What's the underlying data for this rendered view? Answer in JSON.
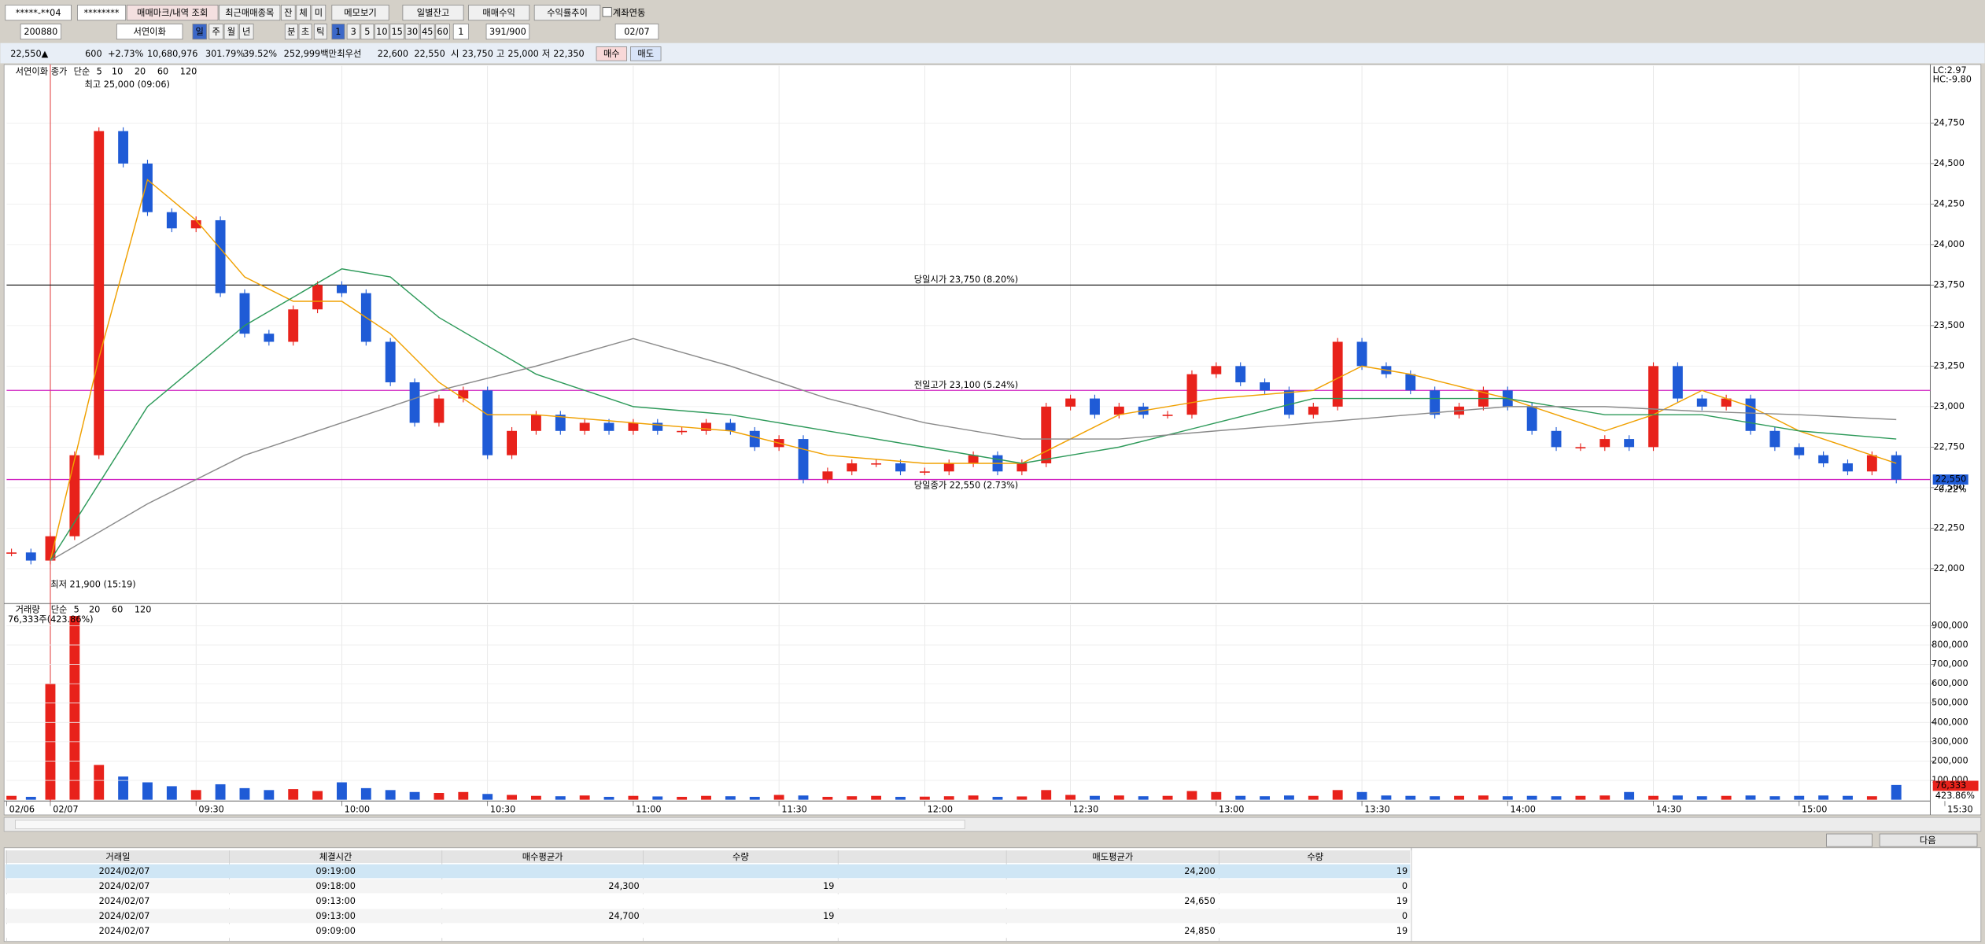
{
  "toolbar": {
    "row1": [
      "*****-**04",
      "********",
      "매매마크/내역 조회",
      "최근매매종목",
      "잔",
      "체",
      "미",
      "메모보기",
      "일별잔고",
      "매매수익",
      "수익률추이",
      "계좌연동"
    ],
    "row2": [
      "200880",
      "서연이화",
      "일",
      "주",
      "월",
      "년",
      "분",
      "초",
      "틱",
      "1",
      "3",
      "5",
      "10",
      "15",
      "30",
      "45",
      "60",
      "1",
      "391/900",
      "02/07"
    ],
    "row3": [
      "22,550▲",
      "600",
      "+2.73%",
      "10,680,976",
      "301.79%",
      "39.52%",
      "252,999백만",
      "최우선",
      "22,600",
      "22,550",
      "시",
      "23,750",
      "고",
      "25,000",
      "저",
      "22,350",
      "매수",
      "매도"
    ]
  },
  "chart_data": [
    {
      "type": "candlestick",
      "name": "서연이화",
      "legend": [
        "종가",
        "단순"
      ],
      "legend_only": [
        {
          "name": "5",
          "color": "#1a2f9c"
        },
        {
          "name": "10",
          "color": "#9a3bb0"
        }
      ],
      "up_color": "#e8221b",
      "down_color": "#1f5bd6",
      "x": [
        -8,
        -4,
        0,
        5,
        10,
        15,
        20,
        25,
        30,
        35,
        40,
        45,
        50,
        55,
        60,
        65,
        70,
        75,
        80,
        85,
        90,
        95,
        100,
        105,
        110,
        115,
        120,
        125,
        130,
        135,
        140,
        145,
        150,
        155,
        160,
        165,
        170,
        175,
        180,
        185,
        190,
        195,
        200,
        205,
        210,
        215,
        220,
        225,
        230,
        235,
        240,
        245,
        250,
        255,
        260,
        265,
        270,
        275,
        280,
        285,
        290,
        295,
        300,
        305,
        310,
        315,
        320,
        325,
        330,
        335,
        340,
        345,
        350,
        355,
        360,
        365,
        370,
        375,
        380
      ],
      "values": [
        22100,
        22050,
        22200,
        22700,
        24700,
        24500,
        24200,
        24100,
        24150,
        23700,
        23450,
        23400,
        23600,
        23750,
        23700,
        23400,
        23150,
        22900,
        23050,
        23100,
        22700,
        22850,
        22950,
        22850,
        22900,
        22850,
        22900,
        22850,
        22850,
        22900,
        22850,
        22750,
        22800,
        22550,
        22600,
        22650,
        22650,
        22600,
        22600,
        22650,
        22700,
        22600,
        22650,
        23000,
        23050,
        22950,
        23000,
        22950,
        22950,
        23200,
        23250,
        23150,
        23100,
        22950,
        23000,
        23400,
        23250,
        23200,
        23100,
        22950,
        23000,
        23100,
        23000,
        22850,
        22750,
        22750,
        22800,
        22750,
        23250,
        23050,
        23000,
        23050,
        22850,
        22750,
        22700,
        22650,
        22600,
        22700,
        22550
      ],
      "series": [
        {
          "name": "20",
          "color": "#f0a000",
          "x": [
            0,
            10,
            20,
            30,
            40,
            50,
            60,
            70,
            80,
            90,
            100,
            120,
            140,
            160,
            180,
            200,
            210,
            220,
            240,
            260,
            270,
            280,
            300,
            320,
            330,
            340,
            350,
            360,
            380
          ],
          "values": [
            22050,
            23300,
            24400,
            24150,
            23800,
            23650,
            23650,
            23450,
            23150,
            22950,
            22950,
            22900,
            22850,
            22700,
            22650,
            22650,
            22800,
            22950,
            23050,
            23100,
            23250,
            23200,
            23050,
            22850,
            22950,
            23100,
            23000,
            22850,
            22650
          ]
        },
        {
          "name": "60",
          "color": "#2e9a5a",
          "x": [
            0,
            20,
            40,
            60,
            70,
            80,
            100,
            120,
            140,
            160,
            180,
            200,
            220,
            240,
            260,
            280,
            300,
            320,
            340,
            360,
            380
          ],
          "values": [
            22050,
            23000,
            23500,
            23850,
            23800,
            23550,
            23200,
            23000,
            22950,
            22850,
            22750,
            22650,
            22750,
            22900,
            23050,
            23050,
            23050,
            22950,
            22950,
            22850,
            22800
          ]
        },
        {
          "name": "120",
          "color": "#8a8a8a",
          "x": [
            0,
            20,
            40,
            60,
            80,
            100,
            120,
            140,
            160,
            180,
            200,
            220,
            240,
            260,
            280,
            300,
            320,
            340,
            360,
            380
          ],
          "values": [
            22050,
            22400,
            22700,
            22900,
            23100,
            23250,
            23420,
            23250,
            23050,
            22900,
            22800,
            22800,
            22850,
            22900,
            22950,
            23000,
            23000,
            22970,
            22950,
            22920
          ]
        }
      ],
      "xlim": [
        -9,
        387
      ],
      "ylim": [
        21800,
        25025
      ],
      "yticks": [
        {
          "value": 22000,
          "label": "22,000"
        },
        {
          "value": 22250,
          "label": "22,250"
        },
        {
          "value": 22500,
          "label": "22,500"
        },
        {
          "value": 22750,
          "label": "22,750"
        },
        {
          "value": 23000,
          "label": "23,000"
        },
        {
          "value": 23250,
          "label": "23,250"
        },
        {
          "value": 23500,
          "label": "23,500"
        },
        {
          "value": 23750,
          "label": "23,750"
        },
        {
          "value": 24000,
          "label": "24,000"
        },
        {
          "value": 24250,
          "label": "24,250"
        },
        {
          "value": 24500,
          "label": "24,500"
        },
        {
          "value": 24750,
          "label": "24,750"
        }
      ],
      "ref_lines": [
        {
          "value": 23750,
          "label": "당일시가 23,750 (8.20%)",
          "color": "#222222"
        },
        {
          "value": 23100,
          "label": "전일고가 23,100 (5.24%)",
          "color": "#d020c0"
        },
        {
          "value": 22550,
          "label": "당일종가 22,550 (2.73%)",
          "color": "#d020c0"
        }
      ],
      "high": {
        "text": "최고 25,000 (09:06)",
        "x": 6,
        "value": 25000
      },
      "low": {
        "text": "최저 21,900 (15:19)",
        "x": -1,
        "value": 21900
      },
      "corner": [
        "LC:2.97",
        "HC:-9.80"
      ],
      "price_box": {
        "value": 22550,
        "label": "22,550",
        "change": "-0.22%"
      }
    },
    {
      "type": "bar",
      "name": "거래량",
      "legend": [
        "단순"
      ],
      "legend_only": [
        {
          "name": "5",
          "color": "#d020c0"
        },
        {
          "name": "20",
          "color": "#f0a000"
        },
        {
          "name": "60",
          "color": "#2e9a5a"
        },
        {
          "name": "120",
          "color": "#8a8a8a"
        }
      ],
      "info": "76,333주(423.86%)",
      "values": [
        20000,
        15000,
        600000,
        950000,
        180000,
        120000,
        90000,
        70000,
        50000,
        80000,
        60000,
        50000,
        55000,
        45000,
        90000,
        60000,
        50000,
        40000,
        35000,
        40000,
        30000,
        25000,
        20000,
        18000,
        22000,
        15000,
        20000,
        17000,
        15000,
        20000,
        18000,
        15000,
        25000,
        22000,
        15000,
        18000,
        20000,
        15000,
        16000,
        18000,
        22000,
        15000,
        17000,
        50000,
        25000,
        20000,
        22000,
        18000,
        20000,
        45000,
        40000,
        20000,
        18000,
        22000,
        20000,
        50000,
        40000,
        22000,
        20000,
        18000,
        20000,
        22000,
        18000,
        20000,
        18000,
        20000,
        22000,
        40000,
        20000,
        22000,
        18000,
        20000,
        22000,
        18000,
        20000,
        22000,
        20000,
        18000,
        76333
      ],
      "ylim": [
        0,
        975000
      ],
      "yticks": [
        {
          "value": 100000,
          "label": "100,000"
        },
        {
          "value": 200000,
          "label": "200,000"
        },
        {
          "value": 300000,
          "label": "300,000"
        },
        {
          "value": 400000,
          "label": "400,000"
        },
        {
          "value": 500000,
          "label": "500,000"
        },
        {
          "value": 600000,
          "label": "600,000"
        },
        {
          "value": 700000,
          "label": "700,000"
        },
        {
          "value": 800000,
          "label": "800,000"
        },
        {
          "value": 900000,
          "label": "900,000"
        }
      ],
      "last_box": [
        "76,333",
        "423.86%"
      ],
      "xticks": [
        {
          "value": -9,
          "label": "02/06"
        },
        {
          "value": 0,
          "label": "02/07"
        },
        {
          "value": 30,
          "label": "09:30"
        },
        {
          "value": 60,
          "label": "10:00"
        },
        {
          "value": 90,
          "label": "10:30"
        },
        {
          "value": 120,
          "label": "11:00"
        },
        {
          "value": 150,
          "label": "11:30"
        },
        {
          "value": 180,
          "label": "12:00"
        },
        {
          "value": 210,
          "label": "12:30"
        },
        {
          "value": 240,
          "label": "13:00"
        },
        {
          "value": 270,
          "label": "13:30"
        },
        {
          "value": 300,
          "label": "14:00"
        },
        {
          "value": 330,
          "label": "14:30"
        },
        {
          "value": 360,
          "label": "15:00"
        },
        {
          "value": 390,
          "label": "15:30"
        }
      ]
    }
  ],
  "table": {
    "headers": [
      "거래일",
      "체결시간",
      "매수평균가",
      "수량",
      "매도평균가",
      "수량"
    ],
    "rows": [
      [
        "2024/02/07",
        "09:19:00",
        null,
        null,
        "24,200",
        "19"
      ],
      [
        "2024/02/07",
        "09:18:00",
        "24,300",
        "19",
        null,
        "0"
      ],
      [
        "2024/02/07",
        "09:13:00",
        null,
        null,
        "24,650",
        "19"
      ],
      [
        "2024/02/07",
        "09:13:00",
        "24,700",
        "19",
        null,
        "0"
      ],
      [
        "2024/02/07",
        "09:09:00",
        null,
        null,
        "24,850",
        "19"
      ]
    ]
  },
  "next_button": "다음"
}
